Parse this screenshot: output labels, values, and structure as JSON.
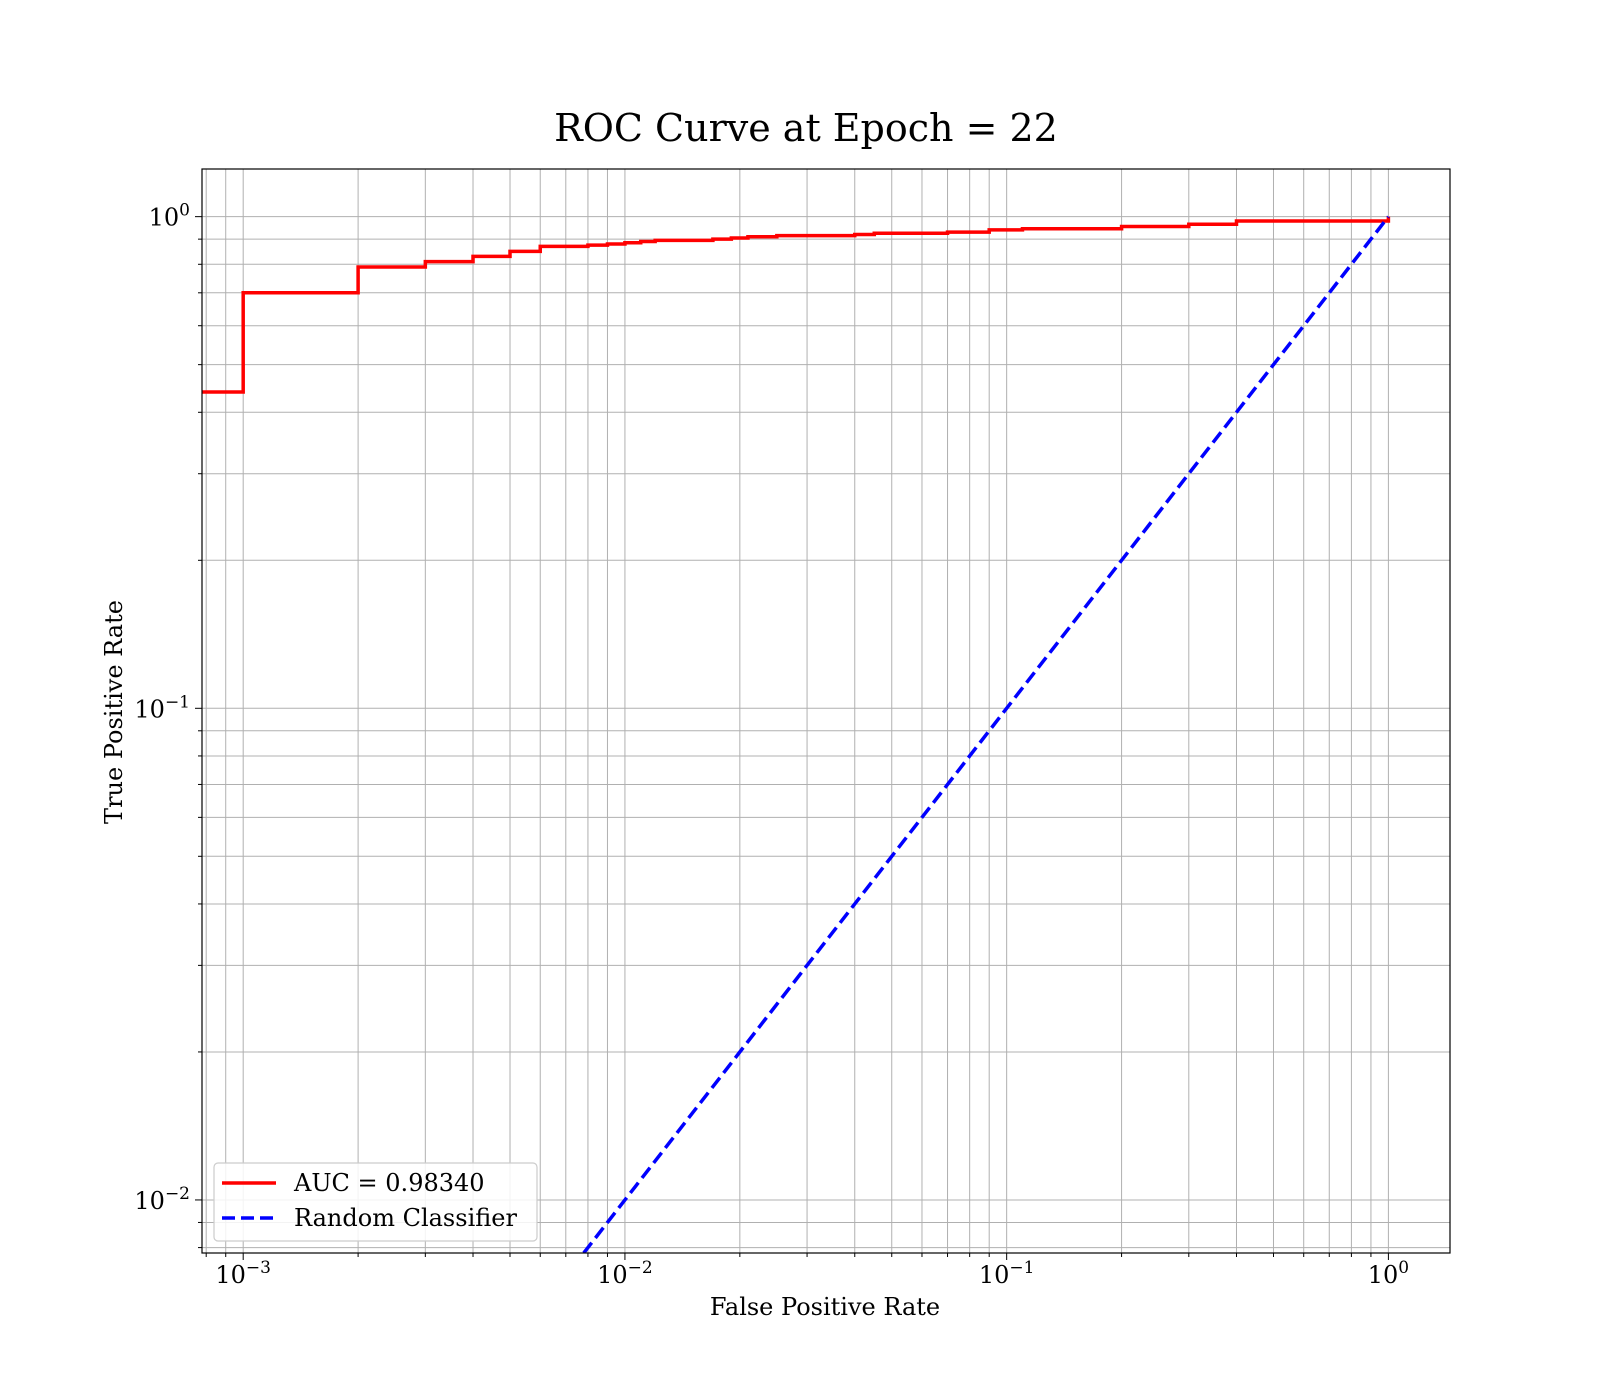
{
  "chart_data": {
    "type": "line",
    "title": "ROC Curve at Epoch = 22",
    "xlabel": "False Positive Rate",
    "ylabel": "True Positive Rate",
    "xscale": "log",
    "yscale": "log",
    "xlim": [
      0.00078,
      1.45
    ],
    "ylim": [
      0.0078,
      1.25
    ],
    "grid": true,
    "grid_which": "both",
    "legend_position": "lower-left",
    "x_ticks": [
      {
        "value": 0.001,
        "base": "10",
        "exp": "−3"
      },
      {
        "value": 0.01,
        "base": "10",
        "exp": "−2"
      },
      {
        "value": 0.1,
        "base": "10",
        "exp": "−1"
      },
      {
        "value": 1,
        "base": "10",
        "exp": "0"
      }
    ],
    "y_ticks": [
      {
        "value": 0.01,
        "base": "10",
        "exp": "−2"
      },
      {
        "value": 0.1,
        "base": "10",
        "exp": "−1"
      },
      {
        "value": 1,
        "base": "10",
        "exp": "0"
      }
    ],
    "series": [
      {
        "name": "AUC = 0.98340",
        "color": "#ff0000",
        "style": "solid",
        "step": true,
        "x": [
          0.0007,
          0.001,
          0.002,
          0.003,
          0.004,
          0.005,
          0.006,
          0.008,
          0.009,
          0.01,
          0.011,
          0.012,
          0.017,
          0.019,
          0.021,
          0.025,
          0.04,
          0.045,
          0.07,
          0.09,
          0.11,
          0.2,
          0.3,
          0.4,
          1.0
        ],
        "y": [
          0.44,
          0.7,
          0.79,
          0.81,
          0.83,
          0.85,
          0.87,
          0.875,
          0.88,
          0.885,
          0.89,
          0.895,
          0.9,
          0.905,
          0.91,
          0.915,
          0.92,
          0.925,
          0.93,
          0.94,
          0.945,
          0.955,
          0.965,
          0.98,
          1.0
        ]
      },
      {
        "name": "Random Classifier",
        "color": "#0000ff",
        "style": "dashed",
        "step": false,
        "x": [
          0.0078,
          1.0
        ],
        "y": [
          0.0078,
          1.0
        ]
      }
    ]
  }
}
